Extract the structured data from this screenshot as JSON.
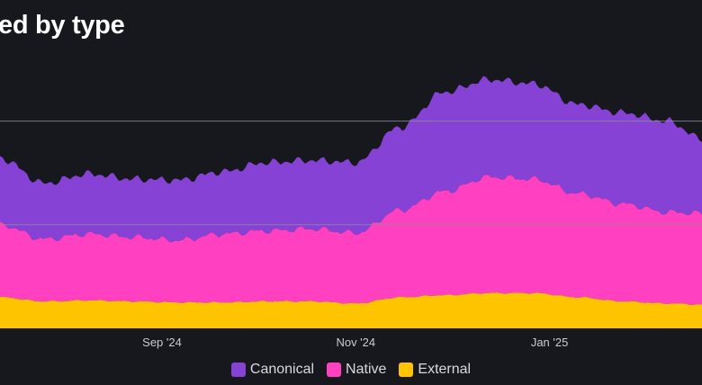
{
  "header": {
    "title": "ed by type"
  },
  "colors": {
    "background": "#17181e",
    "canonical": "#8642d4",
    "native": "#ff40c0",
    "external": "#ffc400",
    "gridline": "#8a8c94"
  },
  "chart_data": {
    "type": "area",
    "stacked": true,
    "title": "ed by type",
    "x_ticks": [
      "Sep '24",
      "Nov '24",
      "Jan '25"
    ],
    "x_tick_dates": [
      "2024-09-01",
      "2024-11-01",
      "2025-01-01"
    ],
    "x_range": [
      "2024-07-12",
      "2025-02-18"
    ],
    "y_range": [
      0,
      11.5
    ],
    "gridlines_y": [
      5,
      10
    ],
    "grid": true,
    "legend_position": "bottom",
    "x": [
      "2024-07-12",
      "2024-07-26",
      "2024-08-09",
      "2024-08-23",
      "2024-09-06",
      "2024-09-20",
      "2024-10-04",
      "2024-10-18",
      "2024-11-01",
      "2024-11-15",
      "2024-11-29",
      "2024-12-13",
      "2024-12-27",
      "2025-01-10",
      "2025-01-24",
      "2025-02-07",
      "2025-02-18"
    ],
    "series": [
      {
        "name": "External",
        "color": "#ffc400",
        "values": [
          1.5,
          1.3,
          1.35,
          1.3,
          1.25,
          1.25,
          1.3,
          1.3,
          1.2,
          1.5,
          1.6,
          1.7,
          1.7,
          1.5,
          1.3,
          1.2,
          1.15
        ]
      },
      {
        "name": "Native",
        "color": "#ff40c0",
        "values": [
          3.5,
          3.0,
          3.2,
          3.1,
          3.0,
          3.3,
          3.4,
          3.5,
          3.4,
          4.2,
          5.0,
          5.6,
          5.5,
          5.0,
          4.7,
          4.4,
          4.4
        ]
      },
      {
        "name": "Canonical",
        "color": "#8642d4",
        "values": [
          3.2,
          2.7,
          2.9,
          2.8,
          2.9,
          3.0,
          3.3,
          3.3,
          3.4,
          4.0,
          4.8,
          4.7,
          4.6,
          4.3,
          4.4,
          4.4,
          3.6
        ]
      }
    ]
  },
  "legend": {
    "items": [
      "Canonical",
      "Native",
      "External"
    ]
  }
}
